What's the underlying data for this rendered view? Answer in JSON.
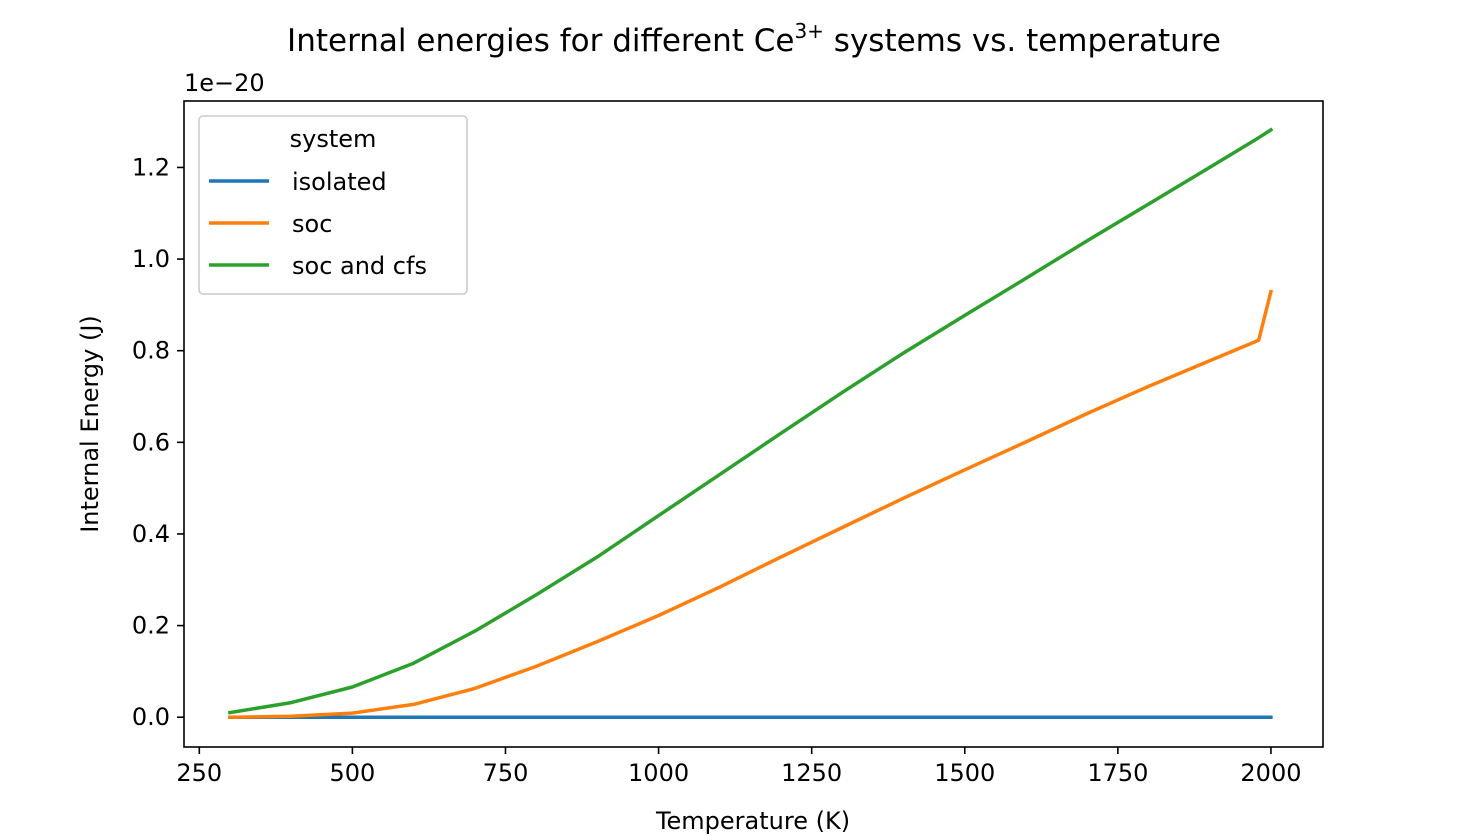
{
  "chart_data": {
    "type": "line",
    "title_main": "Internal energies for different Ce",
    "title_sup": "3+",
    "title_rest": " systems vs. temperature",
    "xlabel": "Temperature (K)",
    "ylabel": "Internal Energy (J)",
    "offset_text": "1e−20",
    "xlim": [
      225,
      2085
    ],
    "ylim": [
      -0.065,
      1.345
    ],
    "xticks": [
      250,
      500,
      750,
      1000,
      1250,
      1500,
      1750,
      2000
    ],
    "xtick_labels": [
      "250",
      "500",
      "750",
      "1000",
      "1250",
      "1500",
      "1750",
      "2000"
    ],
    "yticks": [
      0.0,
      0.2,
      0.4,
      0.6,
      0.8,
      1.0,
      1.2
    ],
    "ytick_labels": [
      "0.0",
      "0.2",
      "0.4",
      "0.6",
      "0.8",
      "1.0",
      "1.2"
    ],
    "grid": false,
    "legend_title": "system",
    "legend_position": "top-left",
    "x": [
      300,
      400,
      500,
      600,
      700,
      800,
      900,
      1000,
      1100,
      1200,
      1300,
      1400,
      1500,
      1600,
      1700,
      1800,
      1900,
      1980,
      2000
    ],
    "series": [
      {
        "name": "isolated",
        "color": "#1f77b4",
        "values": [
          0,
          0,
          0,
          0,
          0,
          0,
          0,
          0,
          0,
          0,
          0,
          0,
          0,
          0,
          0,
          0,
          0,
          0,
          0
        ]
      },
      {
        "name": "soc",
        "color": "#ff7f0e",
        "values": [
          0.0,
          0.002,
          0.009,
          0.028,
          0.063,
          0.111,
          0.165,
          0.222,
          0.284,
          0.35,
          0.414,
          0.478,
          0.54,
          0.601,
          0.663,
          0.722,
          0.778,
          0.823,
          0.929
        ]
      },
      {
        "name": "soc and cfs",
        "color": "#2ca02c",
        "values": [
          0.01,
          0.032,
          0.066,
          0.118,
          0.188,
          0.267,
          0.35,
          0.44,
          0.53,
          0.62,
          0.709,
          0.795,
          0.877,
          0.958,
          1.04,
          1.12,
          1.2,
          1.265,
          1.282
        ]
      }
    ]
  }
}
